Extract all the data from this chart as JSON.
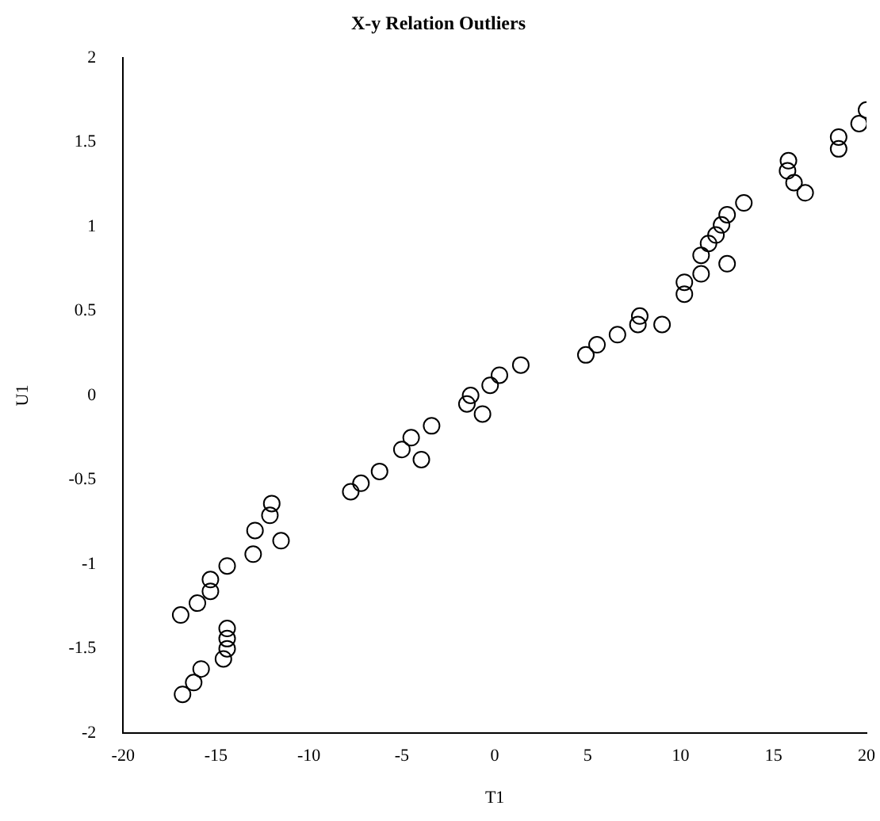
{
  "chart_data": {
    "type": "scatter",
    "title": "X-y Relation Outliers",
    "xlabel": "T1",
    "ylabel": "U1",
    "x": [
      -16.8,
      -16.2,
      -15.8,
      -14.6,
      -14.4,
      -14.4,
      -14.4,
      -16.9,
      -16.0,
      -15.3,
      -15.3,
      -14.4,
      -13.0,
      -12.9,
      -12.1,
      -12.0,
      -11.5,
      -7.75,
      -7.2,
      -6.2,
      -5.0,
      -4.5,
      -3.95,
      -3.4,
      -1.5,
      -1.3,
      -0.66,
      -0.25,
      0.25,
      1.4,
      4.9,
      5.5,
      6.6,
      7.7,
      7.8,
      9.0,
      10.2,
      10.2,
      11.1,
      12.5,
      11.1,
      11.5,
      11.9,
      12.2,
      12.5,
      13.4,
      15.8,
      15.75,
      16.1,
      16.7,
      18.5,
      18.5,
      19.6,
      20.0
    ],
    "values": [
      -1.77,
      -1.7,
      -1.62,
      -1.56,
      -1.5,
      -1.44,
      -1.38,
      -1.3,
      -1.23,
      -1.16,
      -1.09,
      -1.01,
      -0.94,
      -0.8,
      -0.71,
      -0.64,
      -0.86,
      -0.57,
      -0.52,
      -0.45,
      -0.32,
      -0.25,
      -0.38,
      -0.18,
      -0.05,
      0.0,
      -0.11,
      0.06,
      0.12,
      0.18,
      0.24,
      0.3,
      0.36,
      0.42,
      0.47,
      0.42,
      0.6,
      0.67,
      0.72,
      0.78,
      0.83,
      0.9,
      0.95,
      1.01,
      1.07,
      1.14,
      1.39,
      1.33,
      1.26,
      1.2,
      1.46,
      1.53,
      1.61,
      1.69
    ],
    "color": "#000000",
    "marker": "circle",
    "xlim": [
      -20,
      20
    ],
    "xticks": [
      -20,
      -15,
      -10,
      -5,
      0,
      5,
      10,
      15,
      20
    ],
    "ylim": [
      -2,
      2
    ],
    "yticks": [
      -2,
      -1.5,
      -1,
      -0.5,
      0,
      0.5,
      1,
      1.5,
      2
    ]
  }
}
